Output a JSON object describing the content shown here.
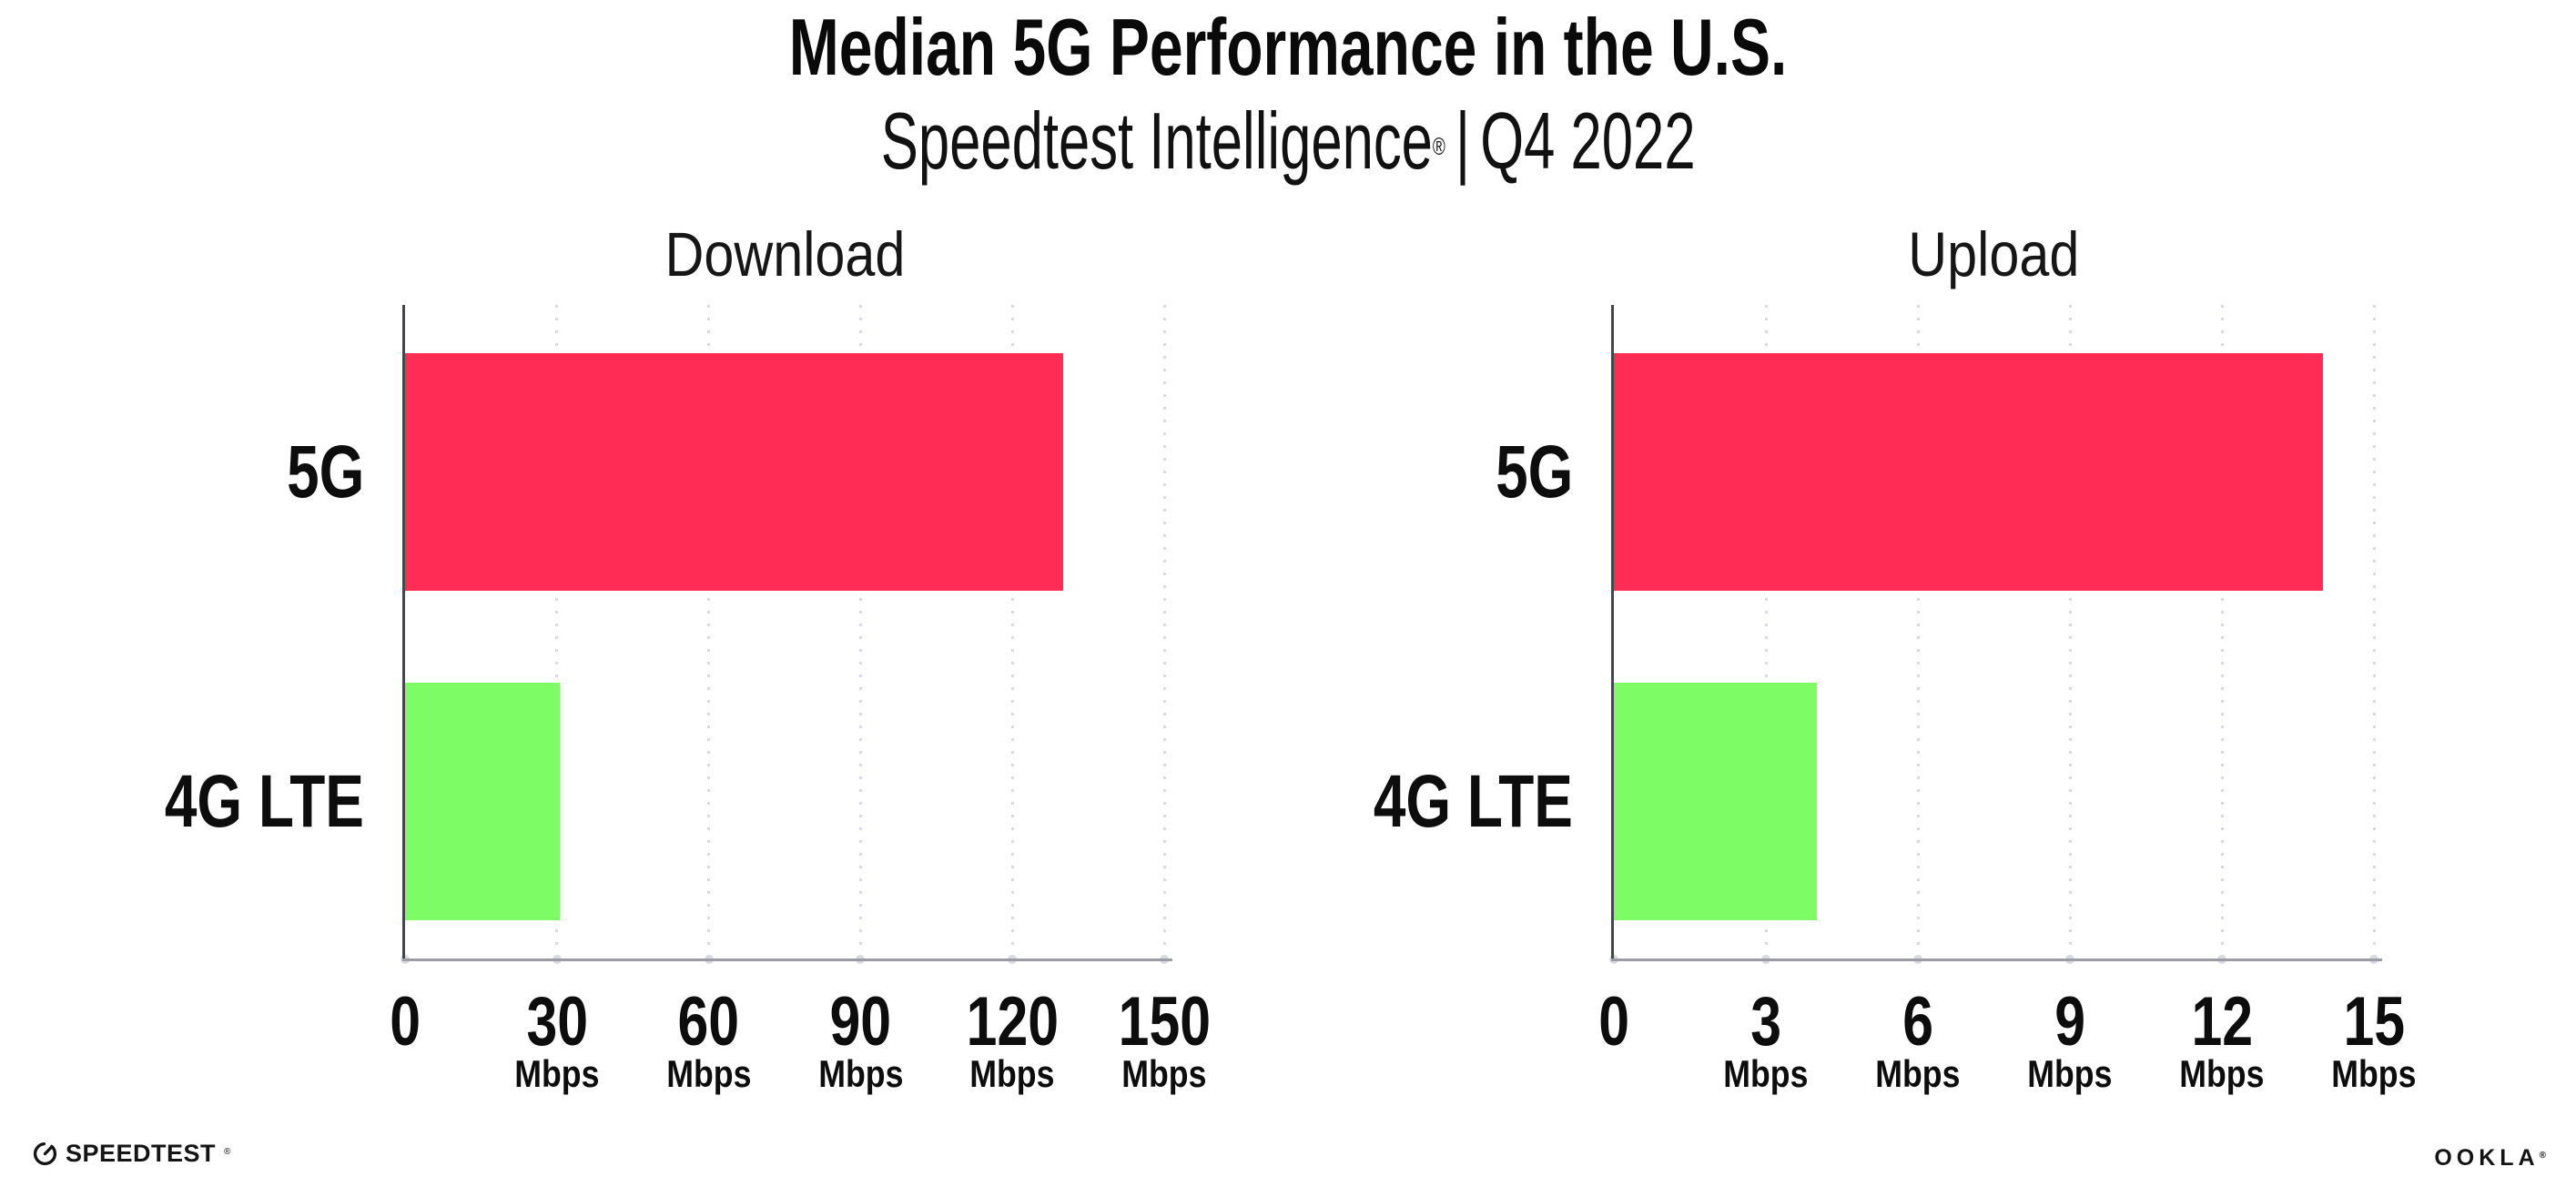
{
  "header": {
    "title": "Median 5G Performance in the U.S.",
    "subtitle_brand": "Speedtest Intelligence",
    "subtitle_reg": "®",
    "subtitle_divider": "|",
    "subtitle_period": "Q4 2022"
  },
  "chart_data": [
    {
      "type": "bar",
      "orientation": "horizontal",
      "title": "Download",
      "categories": [
        "5G",
        "4G LTE"
      ],
      "values": [
        130,
        30.5
      ],
      "unit": "Mbps",
      "xlim": [
        0,
        150
      ],
      "xticks": [
        0,
        30,
        60,
        90,
        120,
        150
      ],
      "grid": "vertical-dotted",
      "legend": "none",
      "bar_colors": [
        "#FF2D55",
        "#7DFC66"
      ]
    },
    {
      "type": "bar",
      "orientation": "horizontal",
      "title": "Upload",
      "categories": [
        "5G",
        "4G LTE"
      ],
      "values": [
        14,
        4
      ],
      "unit": "Mbps",
      "xlim": [
        0,
        15
      ],
      "xticks": [
        0,
        3,
        6,
        9,
        12,
        15
      ],
      "grid": "vertical-dotted",
      "legend": "none",
      "bar_colors": [
        "#FF2D55",
        "#7DFC66"
      ]
    }
  ],
  "footer": {
    "speedtest_wordmark": "SPEEDTEST",
    "speedtest_reg": "®",
    "ookla_wordmark": "OOKLA",
    "ookla_reg": "®"
  },
  "colors": {
    "bar_5g": "#FF2D55",
    "bar_4g_lte": "#7DFC66",
    "axis_line": "#9b9ba3",
    "y_spine": "#45454d",
    "gridline_dots": "#d9d9e2",
    "text": "#0d0d0d"
  }
}
